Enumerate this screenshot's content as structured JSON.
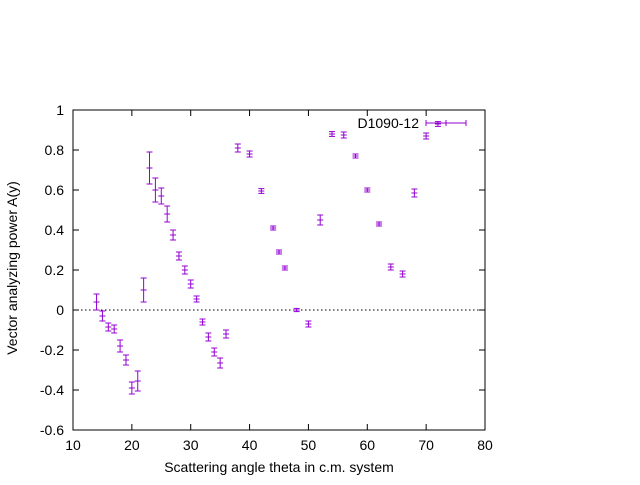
{
  "chart_data": {
    "type": "scatter",
    "xlabel": "Scattering angle theta in c.m. system",
    "ylabel": "Vector analyzing power A(y)",
    "xlim": [
      10,
      80
    ],
    "ylim": [
      -0.6,
      1.0
    ],
    "xticks": [
      10,
      20,
      30,
      40,
      50,
      60,
      70,
      80
    ],
    "yticks": [
      -0.6,
      -0.4,
      -0.2,
      0,
      0.2,
      0.4,
      0.6,
      0.8,
      1
    ],
    "xtick_labels": [
      "10",
      "20",
      "30",
      "40",
      "50",
      "60",
      "70",
      "80"
    ],
    "ytick_labels": [
      "-0.6",
      "-0.4",
      "-0.2",
      "0",
      "0.2",
      "0.4",
      "0.6",
      "0.8",
      "1"
    ],
    "zero_line": true,
    "grid": false,
    "legend_position": "top-right",
    "series_color": "#9400d3",
    "series": [
      {
        "name": "D1090-12",
        "points": [
          {
            "x": 14.0,
            "y": 0.04,
            "err": 0.04
          },
          {
            "x": 15.0,
            "y": -0.03,
            "err": 0.025
          },
          {
            "x": 16.0,
            "y": -0.085,
            "err": 0.02
          },
          {
            "x": 17.0,
            "y": -0.095,
            "err": 0.02
          },
          {
            "x": 18.0,
            "y": -0.18,
            "err": 0.03
          },
          {
            "x": 19.0,
            "y": -0.25,
            "err": 0.025
          },
          {
            "x": 20.0,
            "y": -0.39,
            "err": 0.03
          },
          {
            "x": 21.0,
            "y": -0.355,
            "err": 0.05
          },
          {
            "x": 22.0,
            "y": 0.1,
            "err": 0.06
          },
          {
            "x": 23.0,
            "y": 0.71,
            "err": 0.08
          },
          {
            "x": 24.0,
            "y": 0.6,
            "err": 0.06
          },
          {
            "x": 25.0,
            "y": 0.57,
            "err": 0.04
          },
          {
            "x": 26.0,
            "y": 0.48,
            "err": 0.04
          },
          {
            "x": 27.0,
            "y": 0.375,
            "err": 0.025
          },
          {
            "x": 28.0,
            "y": 0.27,
            "err": 0.02
          },
          {
            "x": 29.0,
            "y": 0.2,
            "err": 0.02
          },
          {
            "x": 30.0,
            "y": 0.13,
            "err": 0.02
          },
          {
            "x": 31.0,
            "y": 0.055,
            "err": 0.015
          },
          {
            "x": 32.0,
            "y": -0.06,
            "err": 0.015
          },
          {
            "x": 33.0,
            "y": -0.135,
            "err": 0.02
          },
          {
            "x": 34.0,
            "y": -0.21,
            "err": 0.02
          },
          {
            "x": 35.0,
            "y": -0.265,
            "err": 0.025
          },
          {
            "x": 36.0,
            "y": -0.12,
            "err": 0.02
          },
          {
            "x": 38.0,
            "y": 0.81,
            "err": 0.02
          },
          {
            "x": 40.0,
            "y": 0.78,
            "err": 0.015
          },
          {
            "x": 42.0,
            "y": 0.595,
            "err": 0.012
          },
          {
            "x": 44.0,
            "y": 0.41,
            "err": 0.01
          },
          {
            "x": 45.0,
            "y": 0.29,
            "err": 0.01
          },
          {
            "x": 46.0,
            "y": 0.21,
            "err": 0.01
          },
          {
            "x": 48.0,
            "y": 0.0,
            "err": 0.008
          },
          {
            "x": 50.0,
            "y": -0.07,
            "err": 0.015
          },
          {
            "x": 52.0,
            "y": 0.45,
            "err": 0.025
          },
          {
            "x": 54.0,
            "y": 0.88,
            "err": 0.012
          },
          {
            "x": 56.0,
            "y": 0.875,
            "err": 0.015
          },
          {
            "x": 58.0,
            "y": 0.77,
            "err": 0.01
          },
          {
            "x": 60.0,
            "y": 0.6,
            "err": 0.01
          },
          {
            "x": 62.0,
            "y": 0.43,
            "err": 0.01
          },
          {
            "x": 64.0,
            "y": 0.215,
            "err": 0.015
          },
          {
            "x": 66.0,
            "y": 0.18,
            "err": 0.015
          },
          {
            "x": 68.0,
            "y": 0.585,
            "err": 0.02
          },
          {
            "x": 70.0,
            "y": 0.87,
            "err": 0.015
          },
          {
            "x": 72.0,
            "y": 0.93,
            "err": 0.012
          }
        ]
      }
    ]
  }
}
